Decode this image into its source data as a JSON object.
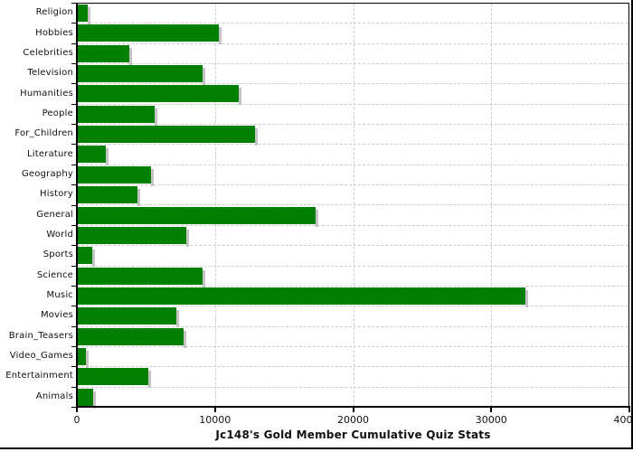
{
  "chart_data": {
    "type": "bar",
    "orientation": "horizontal",
    "title": "Jc148's Gold Member Cumulative Quiz Stats",
    "categories": [
      "Religion",
      "Hobbies",
      "Celebrities",
      "Television",
      "Humanities",
      "People",
      "For_Children",
      "Literature",
      "Geography",
      "History",
      "General",
      "World",
      "Sports",
      "Science",
      "Music",
      "Movies",
      "Brain_Teasers",
      "Video_Games",
      "Entertainment",
      "Animals"
    ],
    "values": [
      800,
      10300,
      3800,
      9100,
      11700,
      5600,
      12900,
      2100,
      5400,
      4400,
      17300,
      7900,
      1100,
      9100,
      32500,
      7200,
      7700,
      650,
      5200,
      1200
    ],
    "xlabel": "",
    "ylabel": "",
    "xlim": [
      0,
      40000
    ],
    "xticks": [
      0,
      10000,
      20000,
      30000,
      40000
    ],
    "grid": "dashed-both-axes",
    "legend": "none",
    "colors": {
      "bar": "#008000",
      "bar_shadow": "#c3c3c3",
      "grid": "#cccccc",
      "axis": "#000000",
      "text": "#111111",
      "background": "#ffffff"
    }
  }
}
